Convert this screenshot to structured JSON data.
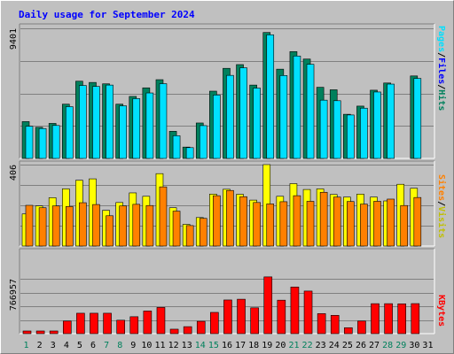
{
  "title": "Daily usage for September 2024",
  "colors": {
    "background": "#c0c0c0",
    "panel": "#c0c0c0",
    "hits": "#00805c",
    "files": "#00e0ff",
    "visits": "#ffff00",
    "sites": "#ff8000",
    "kbytes": "#ff0000",
    "title": "#0000ff",
    "weekend": "#00805c"
  },
  "labels": {
    "hits": "Hits",
    "files": "Files",
    "pages": "Pages",
    "visits": "Visits",
    "sites": "Sites",
    "kbytes": "KBytes",
    "sep": "/"
  },
  "chart_data": {
    "type": "bar",
    "title": "Daily usage for September 2024",
    "x": [
      1,
      2,
      3,
      4,
      5,
      6,
      7,
      8,
      9,
      10,
      11,
      12,
      13,
      14,
      15,
      16,
      17,
      18,
      19,
      20,
      21,
      22,
      23,
      24,
      25,
      26,
      27,
      28,
      29,
      30,
      31
    ],
    "weekend_days": [
      1,
      7,
      8,
      14,
      15,
      21,
      22,
      28,
      29
    ],
    "panels": [
      {
        "name": "traffic",
        "ymax": 9401,
        "ymax_label": "9401",
        "series": [
          {
            "name": "Hits",
            "color": "#00805c",
            "values": [
              2660,
              2250,
              2530,
              3920,
              5580,
              5490,
              5390,
              3920,
              4480,
              5100,
              5690,
              1960,
              820,
              2560,
              4860,
              6510,
              6780,
              5300,
              9100,
              6450,
              7720,
              7180,
              5140,
              4960,
              3190,
              3780,
              4930,
              5450,
              0,
              5960,
              0
            ]
          },
          {
            "name": "Files",
            "color": "#00e0ff",
            "values": [
              2320,
              2160,
              2380,
              3740,
              5270,
              5200,
              5300,
              3800,
              4320,
              4730,
              5400,
              1640,
              780,
              2370,
              4580,
              6000,
              6550,
              5080,
              8930,
              5990,
              7400,
              6800,
              4210,
              4170,
              3140,
              3630,
              4800,
              5370,
              0,
              5780,
              0
            ]
          },
          {
            "name": "Pages",
            "color": "#00e0ff",
            "values": [
              2320,
              2160,
              2380,
              3740,
              5270,
              5200,
              5300,
              3800,
              4320,
              4730,
              5400,
              1640,
              780,
              2370,
              4580,
              6000,
              6550,
              5080,
              8930,
              5990,
              7400,
              6800,
              4210,
              4170,
              3140,
              3630,
              4800,
              5370,
              0,
              5780,
              0
            ]
          }
        ]
      },
      {
        "name": "visitors",
        "ymax": 406,
        "ymax_label": "406",
        "series": [
          {
            "name": "Visits",
            "color": "#ffff00",
            "values": [
              160,
              200,
              241,
              285,
              328,
              335,
              178,
              217,
              265,
              248,
              361,
              191,
              108,
              142,
              259,
              283,
              258,
              229,
              406,
              248,
              311,
              282,
              285,
              257,
              244,
              259,
              244,
              225,
              308,
              288,
              0
            ]
          },
          {
            "name": "Sites",
            "color": "#ff8000",
            "values": [
              203,
              191,
              200,
              197,
              216,
              207,
              151,
              200,
              208,
              202,
              295,
              174,
              102,
              138,
              251,
              277,
              246,
              217,
              210,
              221,
              251,
              223,
              268,
              244,
              222,
              209,
              223,
              234,
              202,
              242,
              0
            ]
          }
        ]
      },
      {
        "name": "volume",
        "ymax": 766957,
        "ymax_label": "766957",
        "series": [
          {
            "name": "KBytes",
            "color": "#ff0000",
            "values": [
              37300,
              37300,
              37300,
              176100,
              285400,
              285400,
              285400,
              187800,
              236700,
              316600,
              366200,
              62400,
              97700,
              172400,
              297100,
              470800,
              481100,
              361100,
              793300,
              467900,
              652000,
              595100,
              279700,
              255800,
              83000,
              176100,
              419100,
              419100,
              416800,
              420000,
              0
            ]
          }
        ]
      }
    ]
  }
}
